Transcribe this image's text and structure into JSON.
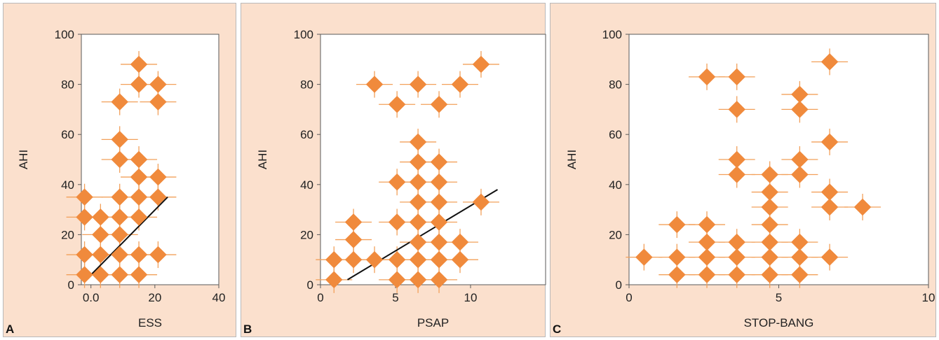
{
  "chart_data": [
    {
      "panel_label": "A",
      "type": "scatter",
      "xlabel": "ESS",
      "ylabel": "AHI",
      "xlim": [
        -3,
        40
      ],
      "ylim": [
        0,
        100
      ],
      "xticks": [
        0,
        20,
        40
      ],
      "xtick_labels": [
        "0.0",
        "20",
        "40"
      ],
      "yticks": [
        0,
        20,
        40,
        60,
        80,
        100
      ],
      "error_bars": true,
      "marker": "diamond",
      "marker_color": "#f08a3c",
      "trend_line": {
        "x": [
          -1.5,
          24
        ],
        "y": [
          2,
          35
        ]
      },
      "points": [
        {
          "x": -2,
          "y": 35
        },
        {
          "x": -2,
          "y": 27
        },
        {
          "x": -2,
          "y": 12
        },
        {
          "x": -2,
          "y": 4
        },
        {
          "x": 3,
          "y": 27
        },
        {
          "x": 3,
          "y": 20
        },
        {
          "x": 3,
          "y": 12
        },
        {
          "x": 3,
          "y": 4
        },
        {
          "x": 9,
          "y": 73
        },
        {
          "x": 9,
          "y": 58
        },
        {
          "x": 9,
          "y": 50
        },
        {
          "x": 9,
          "y": 35
        },
        {
          "x": 9,
          "y": 27
        },
        {
          "x": 9,
          "y": 20
        },
        {
          "x": 9,
          "y": 12
        },
        {
          "x": 9,
          "y": 4
        },
        {
          "x": 15,
          "y": 88
        },
        {
          "x": 15,
          "y": 80
        },
        {
          "x": 15,
          "y": 50
        },
        {
          "x": 15,
          "y": 43
        },
        {
          "x": 15,
          "y": 35
        },
        {
          "x": 15,
          "y": 27
        },
        {
          "x": 15,
          "y": 12
        },
        {
          "x": 15,
          "y": 4
        },
        {
          "x": 21,
          "y": 80
        },
        {
          "x": 21,
          "y": 73
        },
        {
          "x": 21,
          "y": 43
        },
        {
          "x": 21,
          "y": 35
        },
        {
          "x": 21,
          "y": 12
        }
      ]
    },
    {
      "panel_label": "B",
      "type": "scatter",
      "xlabel": "PSAP",
      "ylabel": "AHI",
      "xlim": [
        0,
        15
      ],
      "ylim": [
        0,
        100
      ],
      "xticks": [
        0,
        5,
        10
      ],
      "xtick_labels": [
        "0",
        "5",
        "10"
      ],
      "yticks": [
        0,
        20,
        40,
        60,
        80,
        100
      ],
      "error_bars": true,
      "marker": "diamond",
      "marker_color": "#f08a3c",
      "trend_line": {
        "x": [
          1.8,
          11.8
        ],
        "y": [
          2,
          38
        ]
      },
      "points": [
        {
          "x": 0.9,
          "y": 10
        },
        {
          "x": 0.9,
          "y": 2
        },
        {
          "x": 2.2,
          "y": 25
        },
        {
          "x": 2.2,
          "y": 18
        },
        {
          "x": 2.2,
          "y": 10
        },
        {
          "x": 3.6,
          "y": 80
        },
        {
          "x": 3.6,
          "y": 10
        },
        {
          "x": 5.1,
          "y": 72
        },
        {
          "x": 5.1,
          "y": 41
        },
        {
          "x": 5.1,
          "y": 25
        },
        {
          "x": 5.1,
          "y": 10
        },
        {
          "x": 5.1,
          "y": 2
        },
        {
          "x": 6.5,
          "y": 80
        },
        {
          "x": 6.5,
          "y": 57
        },
        {
          "x": 6.5,
          "y": 49
        },
        {
          "x": 6.5,
          "y": 41
        },
        {
          "x": 6.5,
          "y": 33
        },
        {
          "x": 6.5,
          "y": 25
        },
        {
          "x": 6.5,
          "y": 17
        },
        {
          "x": 6.5,
          "y": 10
        },
        {
          "x": 6.5,
          "y": 2
        },
        {
          "x": 7.9,
          "y": 72
        },
        {
          "x": 7.9,
          "y": 49
        },
        {
          "x": 7.9,
          "y": 41
        },
        {
          "x": 7.9,
          "y": 33
        },
        {
          "x": 7.9,
          "y": 25
        },
        {
          "x": 7.9,
          "y": 17
        },
        {
          "x": 7.9,
          "y": 10
        },
        {
          "x": 7.9,
          "y": 2
        },
        {
          "x": 9.3,
          "y": 80
        },
        {
          "x": 9.3,
          "y": 17
        },
        {
          "x": 9.3,
          "y": 10
        },
        {
          "x": 10.7,
          "y": 88
        },
        {
          "x": 10.7,
          "y": 33
        }
      ]
    },
    {
      "panel_label": "C",
      "type": "scatter",
      "xlabel": "STOP-BANG",
      "ylabel": "AHI",
      "xlim": [
        0,
        10
      ],
      "ylim": [
        0,
        100
      ],
      "xticks": [
        0,
        5,
        10
      ],
      "xtick_labels": [
        "0",
        "5",
        "10"
      ],
      "yticks": [
        0,
        20,
        40,
        60,
        80,
        100
      ],
      "error_bars": true,
      "marker": "diamond",
      "marker_color": "#f08a3c",
      "points": [
        {
          "x": 0.5,
          "y": 11
        },
        {
          "x": 1.6,
          "y": 24
        },
        {
          "x": 1.6,
          "y": 11
        },
        {
          "x": 1.6,
          "y": 4
        },
        {
          "x": 2.6,
          "y": 83
        },
        {
          "x": 2.6,
          "y": 24
        },
        {
          "x": 2.6,
          "y": 17
        },
        {
          "x": 2.6,
          "y": 11
        },
        {
          "x": 2.6,
          "y": 4
        },
        {
          "x": 3.6,
          "y": 83
        },
        {
          "x": 3.6,
          "y": 70
        },
        {
          "x": 3.6,
          "y": 50
        },
        {
          "x": 3.6,
          "y": 44
        },
        {
          "x": 3.6,
          "y": 17
        },
        {
          "x": 3.6,
          "y": 11
        },
        {
          "x": 3.6,
          "y": 4
        },
        {
          "x": 4.7,
          "y": 44
        },
        {
          "x": 4.7,
          "y": 37
        },
        {
          "x": 4.7,
          "y": 31
        },
        {
          "x": 4.7,
          "y": 24
        },
        {
          "x": 4.7,
          "y": 17
        },
        {
          "x": 4.7,
          "y": 11
        },
        {
          "x": 4.7,
          "y": 4
        },
        {
          "x": 5.7,
          "y": 76
        },
        {
          "x": 5.7,
          "y": 70
        },
        {
          "x": 5.7,
          "y": 50
        },
        {
          "x": 5.7,
          "y": 44
        },
        {
          "x": 5.7,
          "y": 17
        },
        {
          "x": 5.7,
          "y": 11
        },
        {
          "x": 5.7,
          "y": 4
        },
        {
          "x": 6.7,
          "y": 89
        },
        {
          "x": 6.7,
          "y": 57
        },
        {
          "x": 6.7,
          "y": 37
        },
        {
          "x": 6.7,
          "y": 31
        },
        {
          "x": 6.7,
          "y": 11
        },
        {
          "x": 7.8,
          "y": 31
        }
      ]
    }
  ]
}
